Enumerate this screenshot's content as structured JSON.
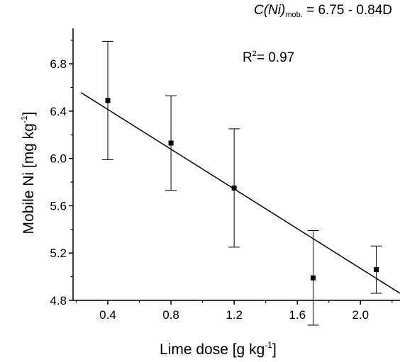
{
  "chart_data": {
    "type": "scatter",
    "title": "",
    "xlabel": {
      "text": "Lime dose [g kg",
      "sup": "-1",
      "end": "]"
    },
    "ylabel": {
      "text": "Mobile Ni [mg kg",
      "sup": "-1",
      "end": "]"
    },
    "xlim": [
      0.18,
      2.25
    ],
    "ylim": [
      4.8,
      7.1
    ],
    "xticks": [
      "0.4",
      "0.8",
      "1.2",
      "1.6",
      "2.0"
    ],
    "yticks": [
      "4.8",
      "5.2",
      "5.6",
      "6.0",
      "6.4",
      "6.8"
    ],
    "grid": false,
    "series": [
      {
        "x": [
          0.4,
          0.8,
          1.2,
          1.7,
          2.1
        ],
        "y": [
          6.49,
          6.13,
          5.75,
          4.99,
          5.06
        ],
        "error": [
          0.5,
          0.4,
          0.5,
          0.4,
          0.2
        ]
      }
    ],
    "fit": {
      "intercept": 6.75,
      "slope": -0.84,
      "x_range": [
        0.23,
        2.25
      ]
    },
    "annotations": {
      "equation_prefix": "C(Ni)",
      "equation_sub": "mob.",
      "equation_rest": " = 6.75 - 0.84D",
      "r2_prefix": "R",
      "r2_sup": "2",
      "r2_rest": "= 0.97"
    }
  }
}
